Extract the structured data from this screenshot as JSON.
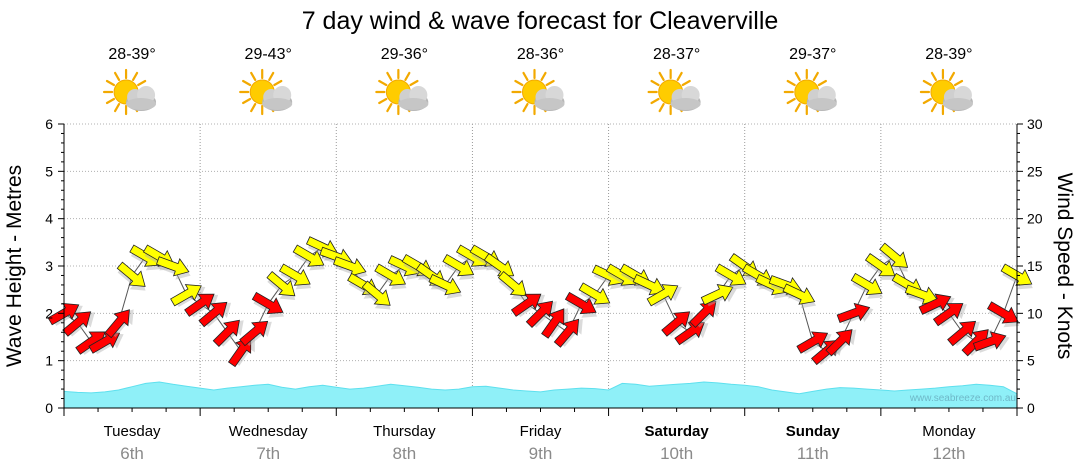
{
  "chart_data": {
    "type": "line",
    "title": "7 day wind & wave forecast for Cleaverville",
    "ylabel_left": "Wave Height - Metres",
    "ylabel_right": "Wind Speed - Knots",
    "ylim_left": [
      0,
      6
    ],
    "ylim_right": [
      0,
      30
    ],
    "yticks_left": [
      "0",
      "1",
      "2",
      "3",
      "4",
      "5",
      "6"
    ],
    "yticks_right": [
      "0",
      "5",
      "10",
      "15",
      "20",
      "25",
      "30"
    ],
    "days": [
      {
        "name": "Tuesday",
        "date": "6th",
        "temp": "28-39°",
        "weekend": false
      },
      {
        "name": "Wednesday",
        "date": "7th",
        "temp": "29-43°",
        "weekend": false
      },
      {
        "name": "Thursday",
        "date": "8th",
        "temp": "29-36°",
        "weekend": false
      },
      {
        "name": "Friday",
        "date": "9th",
        "temp": "28-36°",
        "weekend": false
      },
      {
        "name": "Saturday",
        "date": "10th",
        "temp": "28-37°",
        "weekend": true
      },
      {
        "name": "Sunday",
        "date": "11th",
        "temp": "29-37°",
        "weekend": true
      },
      {
        "name": "Monday",
        "date": "12th",
        "temp": "28-39°",
        "weekend": false
      }
    ],
    "weather_icon": "partly-cloudy-icon",
    "credit": "www.seabreeze.com.au",
    "colors": {
      "wind_strong": "#ff0000",
      "wind_moderate": "#ffff00",
      "wave_fill": "#8ff0f8",
      "wave_stroke": "#5ee0ee"
    },
    "wave_series": {
      "name": "Wave Height (m)",
      "x": [
        0,
        0.1,
        0.2,
        0.3,
        0.4,
        0.5,
        0.6,
        0.7,
        0.8,
        0.9,
        1.0,
        1.1,
        1.2,
        1.3,
        1.4,
        1.5,
        1.6,
        1.7,
        1.8,
        1.9,
        2.0,
        2.1,
        2.2,
        2.3,
        2.4,
        2.5,
        2.6,
        2.7,
        2.8,
        2.9,
        3.0,
        3.1,
        3.2,
        3.3,
        3.4,
        3.5,
        3.6,
        3.7,
        3.8,
        3.9,
        4.0,
        4.1,
        4.2,
        4.3,
        4.4,
        4.5,
        4.6,
        4.7,
        4.8,
        4.9,
        5.0,
        5.1,
        5.2,
        5.3,
        5.4,
        5.5,
        5.6,
        5.7,
        5.8,
        5.9,
        6.0,
        6.1,
        6.2,
        6.3,
        6.4,
        6.5,
        6.6,
        6.7,
        6.8,
        6.9,
        7.0
      ],
      "values": [
        0.35,
        0.33,
        0.32,
        0.34,
        0.38,
        0.45,
        0.52,
        0.55,
        0.5,
        0.46,
        0.42,
        0.38,
        0.42,
        0.45,
        0.48,
        0.5,
        0.44,
        0.4,
        0.45,
        0.48,
        0.44,
        0.4,
        0.42,
        0.46,
        0.5,
        0.47,
        0.44,
        0.4,
        0.38,
        0.4,
        0.45,
        0.46,
        0.42,
        0.38,
        0.36,
        0.34,
        0.38,
        0.4,
        0.42,
        0.41,
        0.38,
        0.52,
        0.5,
        0.46,
        0.48,
        0.5,
        0.52,
        0.55,
        0.53,
        0.5,
        0.48,
        0.45,
        0.38,
        0.34,
        0.3,
        0.35,
        0.4,
        0.43,
        0.42,
        0.4,
        0.38,
        0.36,
        0.38,
        0.4,
        0.42,
        0.45,
        0.47,
        0.5,
        0.48,
        0.45,
        0.3
      ]
    },
    "wind_series": {
      "name": "Wind Speed (kn)",
      "x": [
        0,
        0.1,
        0.2,
        0.3,
        0.4,
        0.5,
        0.6,
        0.7,
        0.8,
        0.9,
        1.0,
        1.1,
        1.2,
        1.3,
        1.4,
        1.5,
        1.6,
        1.7,
        1.8,
        1.9,
        2.0,
        2.1,
        2.2,
        2.3,
        2.4,
        2.5,
        2.6,
        2.7,
        2.8,
        2.9,
        3.0,
        3.1,
        3.2,
        3.3,
        3.4,
        3.5,
        3.6,
        3.7,
        3.8,
        3.9,
        4.0,
        4.1,
        4.2,
        4.3,
        4.4,
        4.5,
        4.6,
        4.7,
        4.8,
        4.9,
        5.0,
        5.1,
        5.2,
        5.3,
        5.4,
        5.5,
        5.6,
        5.7,
        5.8,
        5.9,
        6.0,
        6.1,
        6.2,
        6.3,
        6.4,
        6.5,
        6.6,
        6.7,
        6.8,
        6.9,
        7.0
      ],
      "values": [
        10,
        9,
        7,
        7,
        9,
        14,
        16,
        16,
        15,
        12,
        11,
        10,
        8,
        6,
        8,
        11,
        13,
        14,
        16,
        17,
        16,
        15,
        13,
        12,
        14,
        15,
        15,
        14,
        13,
        15,
        16,
        16,
        15,
        13,
        11,
        10,
        9,
        8,
        11,
        12,
        14,
        14,
        14,
        13,
        12,
        9,
        8,
        10,
        12,
        14,
        15,
        14,
        13,
        13,
        12,
        7,
        6,
        7,
        10,
        13,
        15,
        16,
        13,
        12,
        11,
        10,
        8,
        7,
        7,
        10,
        14
      ],
      "direction_deg": [
        240,
        230,
        235,
        240,
        220,
        310,
        300,
        300,
        290,
        240,
        235,
        230,
        225,
        215,
        230,
        300,
        310,
        300,
        300,
        295,
        290,
        290,
        300,
        310,
        300,
        295,
        300,
        305,
        295,
        300,
        300,
        300,
        305,
        310,
        235,
        225,
        215,
        220,
        300,
        300,
        295,
        300,
        300,
        295,
        240,
        230,
        235,
        225,
        245,
        300,
        305,
        300,
        295,
        290,
        295,
        240,
        230,
        225,
        250,
        300,
        305,
        310,
        300,
        290,
        245,
        235,
        230,
        225,
        250,
        300,
        300
      ]
    }
  }
}
